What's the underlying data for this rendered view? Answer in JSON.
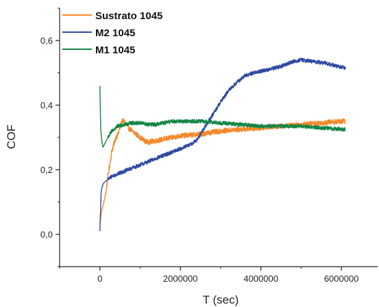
{
  "chart_data": {
    "type": "line",
    "title": "",
    "xlabel": "T (sec)",
    "ylabel": "COF",
    "xlim": [
      -1000000,
      6900000
    ],
    "ylim": [
      -0.1,
      0.7
    ],
    "x_ticks": [
      0,
      2000000,
      4000000,
      6000000
    ],
    "x_tick_labels": [
      "0",
      "2000000",
      "4000000",
      "6000000"
    ],
    "y_ticks": [
      0.0,
      0.2,
      0.4,
      0.6
    ],
    "y_tick_labels": [
      "0,0",
      "0,2",
      "0,4",
      "0,6"
    ],
    "grid": false,
    "legend_position": "top-left",
    "series": [
      {
        "name": "Sustrato 1045",
        "color": "#f5882a",
        "noise": 0.008,
        "points": [
          [
            0,
            0.03
          ],
          [
            30000,
            0.06
          ],
          [
            60000,
            0.08
          ],
          [
            100000,
            0.1
          ],
          [
            150000,
            0.13
          ],
          [
            200000,
            0.18
          ],
          [
            250000,
            0.22
          ],
          [
            300000,
            0.26
          ],
          [
            350000,
            0.28
          ],
          [
            400000,
            0.3
          ],
          [
            450000,
            0.31
          ],
          [
            500000,
            0.33
          ],
          [
            550000,
            0.35
          ],
          [
            600000,
            0.35
          ],
          [
            650000,
            0.34
          ],
          [
            700000,
            0.33
          ],
          [
            800000,
            0.32
          ],
          [
            900000,
            0.31
          ],
          [
            1000000,
            0.3
          ],
          [
            1100000,
            0.29
          ],
          [
            1200000,
            0.285
          ],
          [
            1400000,
            0.29
          ],
          [
            1600000,
            0.295
          ],
          [
            1800000,
            0.3
          ],
          [
            2000000,
            0.305
          ],
          [
            2500000,
            0.31
          ],
          [
            3000000,
            0.32
          ],
          [
            3500000,
            0.325
          ],
          [
            4000000,
            0.33
          ],
          [
            4500000,
            0.335
          ],
          [
            5000000,
            0.34
          ],
          [
            5500000,
            0.345
          ],
          [
            6000000,
            0.35
          ],
          [
            6100000,
            0.35
          ]
        ]
      },
      {
        "name": "M2 1045",
        "color": "#2e4aa3",
        "noise": 0.006,
        "points": [
          [
            0,
            0.01
          ],
          [
            30000,
            0.13
          ],
          [
            60000,
            0.15
          ],
          [
            100000,
            0.16
          ],
          [
            200000,
            0.17
          ],
          [
            300000,
            0.18
          ],
          [
            500000,
            0.19
          ],
          [
            700000,
            0.2
          ],
          [
            1000000,
            0.215
          ],
          [
            1200000,
            0.225
          ],
          [
            1500000,
            0.24
          ],
          [
            1800000,
            0.255
          ],
          [
            2000000,
            0.265
          ],
          [
            2200000,
            0.275
          ],
          [
            2400000,
            0.29
          ],
          [
            2600000,
            0.33
          ],
          [
            2800000,
            0.37
          ],
          [
            3000000,
            0.41
          ],
          [
            3200000,
            0.445
          ],
          [
            3400000,
            0.47
          ],
          [
            3600000,
            0.49
          ],
          [
            3800000,
            0.5
          ],
          [
            4000000,
            0.505
          ],
          [
            4200000,
            0.51
          ],
          [
            4500000,
            0.52
          ],
          [
            4800000,
            0.535
          ],
          [
            5000000,
            0.54
          ],
          [
            5300000,
            0.535
          ],
          [
            5600000,
            0.53
          ],
          [
            5900000,
            0.52
          ],
          [
            6100000,
            0.515
          ]
        ]
      },
      {
        "name": "M1 1045",
        "color": "#128545",
        "noise": 0.006,
        "points": [
          [
            0,
            0.46
          ],
          [
            20000,
            0.33
          ],
          [
            50000,
            0.285
          ],
          [
            80000,
            0.27
          ],
          [
            120000,
            0.28
          ],
          [
            200000,
            0.3
          ],
          [
            300000,
            0.32
          ],
          [
            450000,
            0.335
          ],
          [
            600000,
            0.34
          ],
          [
            800000,
            0.345
          ],
          [
            1000000,
            0.345
          ],
          [
            1200000,
            0.34
          ],
          [
            1400000,
            0.34
          ],
          [
            1600000,
            0.345
          ],
          [
            1800000,
            0.35
          ],
          [
            2000000,
            0.35
          ],
          [
            2500000,
            0.35
          ],
          [
            3000000,
            0.345
          ],
          [
            3500000,
            0.34
          ],
          [
            4000000,
            0.335
          ],
          [
            4500000,
            0.335
          ],
          [
            5000000,
            0.335
          ],
          [
            5500000,
            0.33
          ],
          [
            6000000,
            0.325
          ],
          [
            6100000,
            0.325
          ]
        ]
      }
    ]
  }
}
